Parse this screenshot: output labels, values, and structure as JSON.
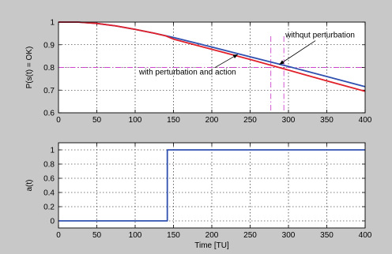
{
  "chart_data": [
    {
      "type": "line",
      "title": "",
      "xlabel": "",
      "ylabel": "P(s(t) = OK)",
      "xlim": [
        0,
        400
      ],
      "ylim": [
        0.6,
        1.0
      ],
      "xticks": [
        0,
        50,
        100,
        150,
        200,
        250,
        300,
        350,
        400
      ],
      "yticks": [
        0.6,
        0.7,
        0.8,
        0.9,
        1.0
      ],
      "ytick_labels": [
        "0.6",
        "0.7",
        "0.8",
        "0.9",
        "1"
      ],
      "grid": true,
      "series": [
        {
          "name": "without perturbation",
          "color": "#3050b0",
          "x": [
            0,
            25,
            50,
            75,
            100,
            125,
            150,
            200,
            250,
            300,
            350,
            400
          ],
          "y": [
            1.0,
            1.0,
            0.994,
            0.983,
            0.968,
            0.951,
            0.932,
            0.89,
            0.847,
            0.804,
            0.76,
            0.715
          ]
        },
        {
          "name": "with perturbation and action",
          "color": "#e0202a",
          "x": [
            0,
            25,
            50,
            75,
            100,
            125,
            140,
            150,
            200,
            250,
            300,
            350,
            400
          ],
          "y": [
            1.0,
            1.0,
            0.994,
            0.983,
            0.968,
            0.951,
            0.939,
            0.925,
            0.88,
            0.835,
            0.788,
            0.741,
            0.695
          ]
        }
      ],
      "reference_lines": [
        {
          "axis": "y",
          "value": 0.8,
          "color": "#cc44cc"
        },
        {
          "axis": "x",
          "value": 277,
          "color": "#cc44cc"
        },
        {
          "axis": "x",
          "value": 294,
          "color": "#cc44cc"
        }
      ],
      "annotations": [
        {
          "text": "withqut perturbation",
          "x": 296,
          "y": 0.932,
          "arrow_to": [
            288,
            0.813
          ]
        },
        {
          "text": "with perturbation and action",
          "x": 105,
          "y": 0.768,
          "arrow_to": [
            234,
            0.858
          ]
        }
      ]
    },
    {
      "type": "line",
      "title": "",
      "xlabel": "Time [TU]",
      "ylabel": "a(t)",
      "xlim": [
        0,
        400
      ],
      "ylim": [
        -0.1,
        1.1
      ],
      "xticks": [
        0,
        50,
        100,
        150,
        200,
        250,
        300,
        350,
        400
      ],
      "yticks": [
        0,
        0.2,
        0.4,
        0.6,
        0.8,
        1
      ],
      "ytick_labels": [
        "0",
        "0.2",
        "0.4",
        "0.6",
        "0.8",
        "1"
      ],
      "grid": true,
      "series": [
        {
          "name": "",
          "color": "#3050b0",
          "x": [
            0,
            142,
            142,
            400
          ],
          "y": [
            0,
            0,
            1,
            1
          ]
        }
      ]
    }
  ]
}
